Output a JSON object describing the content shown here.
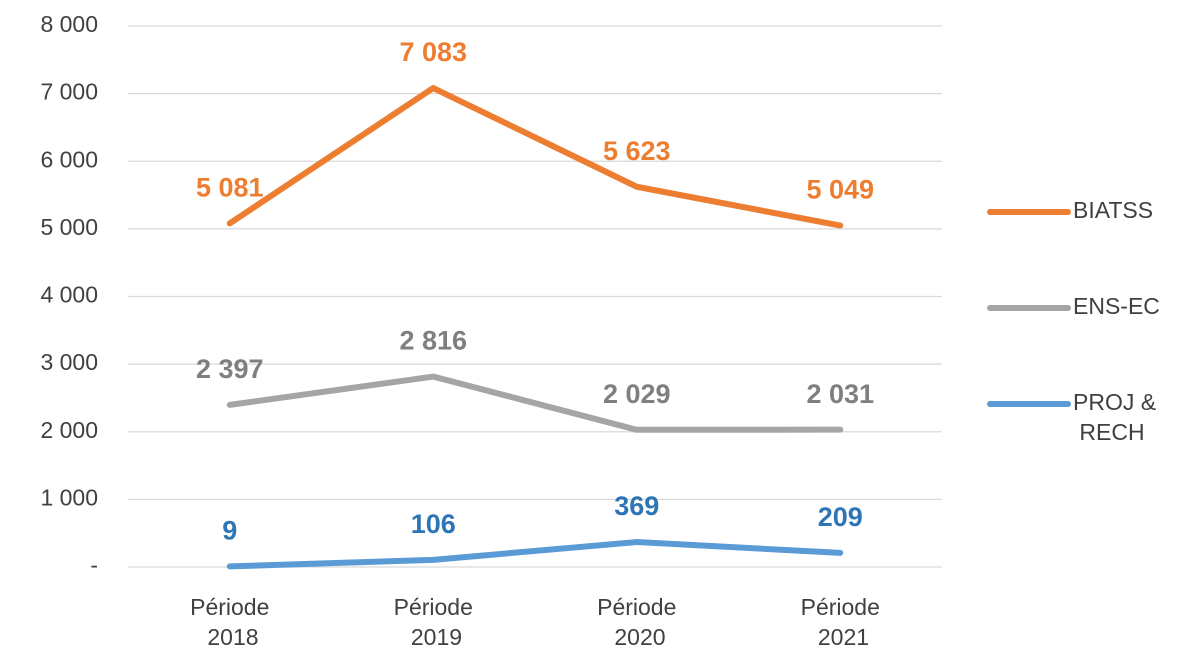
{
  "chart_data": {
    "type": "line",
    "categories": [
      "Période 2018",
      "Période 2019",
      "Période 2020",
      "Période 2021"
    ],
    "series": [
      {
        "name": "BIATSS",
        "color": "#ed7d31",
        "label_color": "#ed7d31",
        "values": [
          5081,
          7083,
          5623,
          5049
        ],
        "value_labels": [
          "5 081",
          "7 083",
          "5 623",
          "5 049"
        ]
      },
      {
        "name": "ENS-EC",
        "color": "#a5a5a5",
        "label_color": "#7f7f7f",
        "values": [
          2397,
          2816,
          2029,
          2031
        ],
        "value_labels": [
          "2 397",
          "2 816",
          "2 029",
          "2 031"
        ]
      },
      {
        "name": "PROJ & RECH",
        "color": "#5b9bd5",
        "label_color": "#2e75b6",
        "values": [
          9,
          106,
          369,
          209
        ],
        "value_labels": [
          "9",
          "106",
          "369",
          "209"
        ]
      }
    ],
    "ylim": [
      0,
      8000
    ],
    "yticks": [
      {
        "value": 0,
        "label": "-"
      },
      {
        "value": 1000,
        "label": "1 000"
      },
      {
        "value": 2000,
        "label": "2 000"
      },
      {
        "value": 3000,
        "label": "3 000"
      },
      {
        "value": 4000,
        "label": "4 000"
      },
      {
        "value": 5000,
        "label": "5 000"
      },
      {
        "value": 6000,
        "label": "6 000"
      },
      {
        "value": 7000,
        "label": "7 000"
      },
      {
        "value": 8000,
        "label": "8 000"
      }
    ],
    "grid": true,
    "legend": "right"
  }
}
